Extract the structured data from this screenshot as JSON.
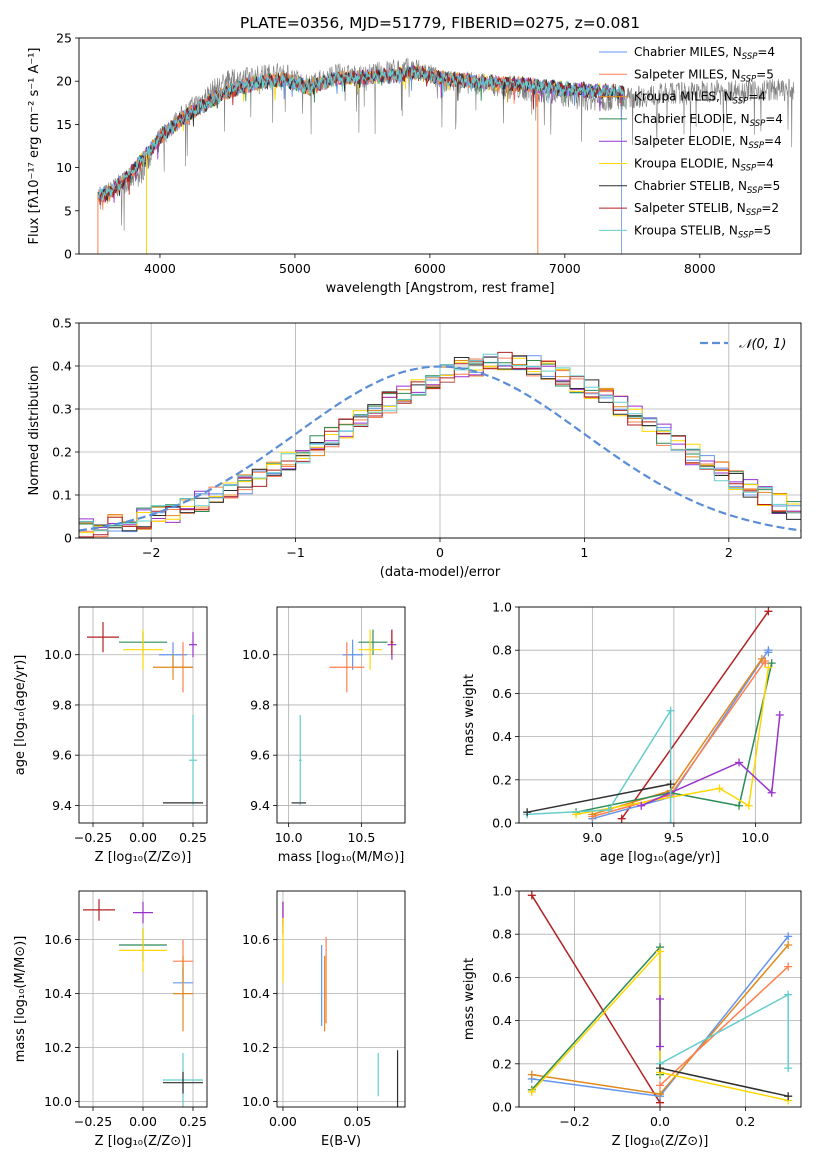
{
  "colors": {
    "Chabrier MILES": "#6495ed",
    "Salpeter MILES": "#ff7f50",
    "Kroupa MILES": "#e08a1e",
    "Chabrier ELODIE": "#2e8b57",
    "Salpeter ELODIE": "#9932cc",
    "Kroupa ELODIE": "#ffd700",
    "Chabrier STELIB": "#2f2f2f",
    "Salpeter STELIB": "#b22222",
    "Kroupa STELIB": "#66cdcd"
  },
  "chart_data": [
    {
      "id": "spectrum",
      "type": "line",
      "title": "PLATE=0356, MJD=51779, FIBERID=0275, z=0.081",
      "xlabel": "wavelength [Angstrom, rest frame]",
      "ylabel": "Flux [fλ10⁻¹⁷ erg cm⁻² s⁻¹ A⁻¹]",
      "xlim": [
        3400,
        8750
      ],
      "ylim": [
        0,
        25
      ],
      "xticks": [
        4000,
        5000,
        6000,
        7000,
        8000
      ],
      "yticks": [
        0,
        5,
        10,
        15,
        20,
        25
      ],
      "legend_position": "top-right",
      "legend": [
        {
          "name": "Chabrier MILES",
          "label": "Chabrier MILES, N",
          "sub": "SSP",
          "suffix": "=4",
          "color": "#6495ed"
        },
        {
          "name": "Salpeter MILES",
          "label": "Salpeter MILES, N",
          "sub": "SSP",
          "suffix": "=5",
          "color": "#ff7f50"
        },
        {
          "name": "Kroupa MILES",
          "label": "Kroupa MILES, N",
          "sub": "SSP",
          "suffix": "=4",
          "color": "#e08a1e"
        },
        {
          "name": "Chabrier ELODIE",
          "label": "Chabrier ELODIE, N",
          "sub": "SSP",
          "suffix": "=4",
          "color": "#2e8b57"
        },
        {
          "name": "Salpeter ELODIE",
          "label": "Salpeter ELODIE, N",
          "sub": "SSP",
          "suffix": "=4",
          "color": "#9932cc"
        },
        {
          "name": "Kroupa ELODIE",
          "label": "Kroupa ELODIE, N",
          "sub": "SSP",
          "suffix": "=4",
          "color": "#ffd700"
        },
        {
          "name": "Chabrier STELIB",
          "label": "Chabrier STELIB, N",
          "sub": "SSP",
          "suffix": "=5",
          "color": "#2f2f2f"
        },
        {
          "name": "Salpeter STELIB",
          "label": "Salpeter STELIB, N",
          "sub": "SSP",
          "suffix": "=2",
          "color": "#b22222"
        },
        {
          "name": "Kroupa STELIB",
          "label": "Kroupa STELIB, N",
          "sub": "SSP",
          "suffix": "=5",
          "color": "#66cdcd"
        }
      ],
      "data_series": {
        "name": "data",
        "color": "#808080",
        "x": [
          3560,
          3700,
          3850,
          4000,
          4200,
          4400,
          4500,
          4700,
          4900,
          5100,
          5300,
          5500,
          5700,
          5900,
          6100,
          6300,
          6500,
          6700,
          6900,
          7100,
          7300,
          7450,
          7700,
          8000,
          8300,
          8700
        ],
        "y": [
          6.5,
          8.0,
          9.0,
          13.5,
          16.5,
          19.0,
          20.0,
          20.5,
          21.0,
          19.5,
          20.8,
          20.5,
          21.3,
          21.5,
          20.0,
          19.8,
          19.5,
          19.0,
          18.5,
          18.0,
          17.8,
          18.0,
          18.5,
          18.8,
          19.0,
          19.0
        ]
      },
      "model_series": {
        "x": [
          3540,
          3620,
          3750,
          3900,
          4000,
          4150,
          4300,
          4500,
          4700,
          4900,
          5100,
          5300,
          5500,
          5700,
          5900,
          6100,
          6300,
          6500,
          6700,
          6900,
          7100,
          7300,
          7440
        ],
        "y": [
          6.8,
          7.0,
          8.8,
          11.5,
          13.5,
          15.5,
          17.0,
          18.8,
          19.8,
          20.2,
          19.3,
          20.3,
          20.5,
          20.6,
          21.0,
          20.3,
          20.0,
          19.8,
          19.6,
          19.3,
          19.0,
          18.8,
          18.7
        ]
      }
    },
    {
      "id": "residuals",
      "type": "line",
      "xlabel": "(data-model)/error",
      "ylabel": "Normed distribution",
      "xlim": [
        -2.5,
        2.5
      ],
      "ylim": [
        0,
        0.5
      ],
      "xticks": [
        -2,
        -1,
        0,
        1,
        2
      ],
      "yticks": [
        0.0,
        0.1,
        0.2,
        0.3,
        0.4,
        0.5
      ],
      "grid": true,
      "legend_position": "top-right",
      "gaussian": {
        "name": "𝒩(0, 1)",
        "mu": 0,
        "sigma": 1,
        "color": "#5b8ed6"
      },
      "histogram_bins": {
        "start": -2.5,
        "width": 0.1,
        "count": 50
      },
      "histogram_profile": [
        0.02,
        0.025,
        0.03,
        0.035,
        0.045,
        0.055,
        0.06,
        0.075,
        0.085,
        0.095,
        0.11,
        0.125,
        0.14,
        0.16,
        0.175,
        0.195,
        0.215,
        0.235,
        0.255,
        0.275,
        0.295,
        0.315,
        0.335,
        0.355,
        0.37,
        0.385,
        0.395,
        0.4,
        0.405,
        0.41,
        0.405,
        0.4,
        0.39,
        0.375,
        0.36,
        0.345,
        0.325,
        0.305,
        0.285,
        0.26,
        0.24,
        0.215,
        0.195,
        0.175,
        0.155,
        0.135,
        0.115,
        0.095,
        0.08,
        0.065
      ]
    },
    {
      "id": "age_vs_Z",
      "type": "scatter",
      "xlabel": "Z [log₁₀(Z/Z⊙)]",
      "ylabel": "age  [log₁₀(age/yr)]",
      "xlim": [
        -0.32,
        0.32
      ],
      "ylim": [
        9.33,
        10.19
      ],
      "xticks": [
        -0.25,
        0.0,
        0.25
      ],
      "xticklabels": [
        "−0.25",
        "0.00",
        "0.25"
      ],
      "yticks": [
        9.4,
        9.6,
        9.8,
        10.0
      ],
      "yticklabels": [
        "9.4",
        "9.6",
        "9.8",
        "10.0"
      ],
      "grid": true,
      "points": [
        {
          "series": "Salpeter STELIB",
          "x": -0.2,
          "xerr": 0.08,
          "y": 10.07,
          "yerr": 0.06
        },
        {
          "series": "Chabrier ELODIE",
          "x": 0.0,
          "xerr": 0.12,
          "y": 10.05,
          "yerr": 0.04
        },
        {
          "series": "Kroupa ELODIE",
          "x": 0.0,
          "xerr": 0.1,
          "y": 10.02,
          "yerr": 0.08
        },
        {
          "series": "Chabrier MILES",
          "x": 0.15,
          "xerr": 0.07,
          "y": 10.0,
          "yerr": 0.05
        },
        {
          "series": "Salpeter MILES",
          "x": 0.2,
          "xerr": 0.05,
          "y": 9.95,
          "yerr": 0.1
        },
        {
          "series": "Kroupa MILES",
          "x": 0.15,
          "xerr": 0.1,
          "y": 9.95,
          "yerr": 0.05
        },
        {
          "series": "Salpeter ELODIE",
          "x": 0.25,
          "xerr": 0.02,
          "y": 10.04,
          "yerr": 0.05
        },
        {
          "series": "Kroupa STELIB",
          "x": 0.25,
          "xerr": 0.02,
          "y": 9.58,
          "yerr": 0.18
        },
        {
          "series": "Chabrier STELIB",
          "x": 0.2,
          "xerr": 0.1,
          "y": 9.41,
          "yerr": 0.0
        }
      ]
    },
    {
      "id": "age_vs_mass",
      "type": "scatter",
      "xlabel": "mass [log₁₀(M/M⊙)]",
      "xlim": [
        9.92,
        10.8
      ],
      "ylim": [
        9.33,
        10.19
      ],
      "xticks": [
        10.0,
        10.5
      ],
      "xticklabels": [
        "10.0",
        "10.5"
      ],
      "yticks": [
        9.4,
        9.6,
        9.8,
        10.0
      ],
      "yticklabels": [
        "9.4",
        "9.6",
        "9.8",
        "10.0"
      ],
      "grid": true,
      "points": [
        {
          "series": "Chabrier ELODIE",
          "x": 10.58,
          "xerr": 0.1,
          "y": 10.05,
          "yerr": 0.05
        },
        {
          "series": "Kroupa ELODIE",
          "x": 10.56,
          "xerr": 0.08,
          "y": 10.02,
          "yerr": 0.08
        },
        {
          "series": "Chabrier MILES",
          "x": 10.44,
          "xerr": 0.07,
          "y": 10.0,
          "yerr": 0.06
        },
        {
          "series": "Salpeter MILES",
          "x": 10.4,
          "xerr": 0.12,
          "y": 9.95,
          "yerr": 0.1
        },
        {
          "series": "Salpeter ELODIE",
          "x": 10.71,
          "xerr": 0.03,
          "y": 10.04,
          "yerr": 0.06
        },
        {
          "series": "Salpeter STELIB",
          "x": 10.71,
          "xerr": 0.01,
          "y": 10.05,
          "yerr": 0.05
        },
        {
          "series": "Kroupa STELIB",
          "x": 10.08,
          "xerr": 0.01,
          "y": 9.58,
          "yerr": 0.18
        },
        {
          "series": "Chabrier STELIB",
          "x": 10.07,
          "xerr": 0.05,
          "y": 9.41,
          "yerr": 0.0
        }
      ]
    },
    {
      "id": "weight_vs_age",
      "type": "line",
      "xlabel": "age  [log₁₀(age/yr)]",
      "ylabel": "mass weight",
      "xlim": [
        8.55,
        10.28
      ],
      "ylim": [
        0,
        1
      ],
      "xticks": [
        9.0,
        9.5,
        10.0
      ],
      "xticklabels": [
        "9.0",
        "9.5",
        "10.0"
      ],
      "yticks": [
        0.0,
        0.2,
        0.4,
        0.6,
        0.8,
        1.0
      ],
      "yticklabels": [
        "0.0",
        "0.2",
        "0.4",
        "0.6",
        "0.8",
        "1.0"
      ],
      "grid": true,
      "series": [
        {
          "name": "Salpeter STELIB",
          "x": [
            9.18,
            10.08
          ],
          "y": [
            0.02,
            0.98
          ]
        },
        {
          "name": "Chabrier MILES",
          "x": [
            9.0,
            9.48,
            10.08,
            10.08
          ],
          "y": [
            0.02,
            0.12,
            0.8,
            0.79
          ]
        },
        {
          "name": "Salpeter MILES",
          "x": [
            9.0,
            9.48,
            10.06,
            10.06
          ],
          "y": [
            0.03,
            0.13,
            0.75,
            0.74
          ]
        },
        {
          "name": "Kroupa MILES",
          "x": [
            9.0,
            9.48,
            10.04
          ],
          "y": [
            0.04,
            0.15,
            0.76
          ]
        },
        {
          "name": "Chabrier ELODIE",
          "x": [
            8.9,
            9.48,
            9.9,
            10.1
          ],
          "y": [
            0.05,
            0.14,
            0.08,
            0.74
          ]
        },
        {
          "name": "Kroupa ELODIE",
          "x": [
            8.9,
            9.78,
            9.96,
            10.08
          ],
          "y": [
            0.04,
            0.16,
            0.08,
            0.72
          ]
        },
        {
          "name": "Salpeter ELODIE",
          "x": [
            9.3,
            9.9,
            10.1,
            10.15
          ],
          "y": [
            0.08,
            0.28,
            0.14,
            0.5
          ]
        },
        {
          "name": "Kroupa STELIB",
          "x": [
            8.6,
            9.1,
            9.48,
            9.48
          ],
          "y": [
            0.04,
            0.06,
            0.52,
            0.0
          ]
        },
        {
          "name": "Chabrier STELIB",
          "x": [
            8.6,
            9.48
          ],
          "y": [
            0.05,
            0.18
          ]
        }
      ]
    },
    {
      "id": "mass_vs_Z",
      "type": "scatter",
      "xlabel": "Z [log₁₀(Z/Z⊙)]",
      "ylabel": "mass [log₁₀(M/M⊙)]",
      "xlim": [
        -0.32,
        0.32
      ],
      "ylim": [
        9.98,
        10.78
      ],
      "xticks": [
        -0.25,
        0.0,
        0.25
      ],
      "xticklabels": [
        "−0.25",
        "0.00",
        "0.25"
      ],
      "yticks": [
        10.0,
        10.2,
        10.4,
        10.6
      ],
      "yticklabels": [
        "10.0",
        "10.2",
        "10.4",
        "10.6"
      ],
      "grid": true,
      "points": [
        {
          "series": "Salpeter STELIB",
          "x": -0.22,
          "xerr": 0.08,
          "y": 10.71,
          "yerr": 0.04
        },
        {
          "series": "Salpeter ELODIE",
          "x": 0.0,
          "xerr": 0.05,
          "y": 10.7,
          "yerr": 0.04
        },
        {
          "series": "Chabrier ELODIE",
          "x": 0.0,
          "xerr": 0.12,
          "y": 10.58,
          "yerr": 0.06
        },
        {
          "series": "Kroupa ELODIE",
          "x": 0.0,
          "xerr": 0.12,
          "y": 10.56,
          "yerr": 0.08
        },
        {
          "series": "Salpeter MILES",
          "x": 0.2,
          "xerr": 0.05,
          "y": 10.52,
          "yerr": 0.08
        },
        {
          "series": "Chabrier MILES",
          "x": 0.2,
          "xerr": 0.05,
          "y": 10.44,
          "yerr": 0.06
        },
        {
          "series": "Kroupa MILES",
          "x": 0.2,
          "xerr": 0.05,
          "y": 10.4,
          "yerr": 0.14
        },
        {
          "series": "Kroupa STELIB",
          "x": 0.2,
          "xerr": 0.1,
          "y": 10.08,
          "yerr": 0.1
        },
        {
          "series": "Chabrier STELIB",
          "x": 0.2,
          "xerr": 0.1,
          "y": 10.07,
          "yerr": 0.04
        }
      ]
    },
    {
      "id": "mass_vs_ebv",
      "type": "scatter",
      "xlabel": "E(B-V)",
      "xlim": [
        -0.004,
        0.082
      ],
      "ylim": [
        9.98,
        10.78
      ],
      "xticks": [
        0.0,
        0.05
      ],
      "xticklabels": [
        "0.00",
        "0.05"
      ],
      "yticks": [
        10.0,
        10.2,
        10.4,
        10.6
      ],
      "yticklabels": [
        "10.0",
        "10.2",
        "10.4",
        "10.6"
      ],
      "grid": true,
      "points": [
        {
          "series": "Salpeter STELIB",
          "x": 0.0,
          "xerr": 0.0,
          "y": 10.68,
          "yerr": 0.06
        },
        {
          "series": "Salpeter ELODIE",
          "x": 0.0,
          "xerr": 0.0,
          "y": 10.7,
          "yerr": 0.04
        },
        {
          "series": "Kroupa ELODIE",
          "x": 0.0,
          "xerr": 0.0,
          "y": 10.56,
          "yerr": 0.12
        },
        {
          "series": "Chabrier MILES",
          "x": 0.026,
          "xerr": 0.0,
          "y": 10.43,
          "yerr": 0.15
        },
        {
          "series": "Salpeter MILES",
          "x": 0.029,
          "xerr": 0.0,
          "y": 10.45,
          "yerr": 0.16
        },
        {
          "series": "Kroupa MILES",
          "x": 0.028,
          "xerr": 0.0,
          "y": 10.4,
          "yerr": 0.14
        },
        {
          "series": "Kroupa STELIB",
          "x": 0.064,
          "xerr": 0.0,
          "y": 10.1,
          "yerr": 0.08
        },
        {
          "series": "Chabrier STELIB",
          "x": 0.077,
          "xerr": 0.0,
          "y": 10.07,
          "yerr": 0.12
        }
      ]
    },
    {
      "id": "weight_vs_Z",
      "type": "line",
      "xlabel": "Z [log₁₀(Z/Z⊙)]",
      "ylabel": "mass weight",
      "xlim": [
        -0.33,
        0.33
      ],
      "ylim": [
        0,
        1
      ],
      "xticks": [
        -0.2,
        0.0,
        0.2
      ],
      "xticklabels": [
        "−0.2",
        "0.0",
        "0.2"
      ],
      "yticks": [
        0.0,
        0.2,
        0.4,
        0.6,
        0.8,
        1.0
      ],
      "yticklabels": [
        "0.0",
        "0.2",
        "0.4",
        "0.6",
        "0.8",
        "1.0"
      ],
      "grid": true,
      "series": [
        {
          "name": "Salpeter STELIB",
          "x": [
            -0.3,
            0.0
          ],
          "y": [
            0.98,
            0.02
          ]
        },
        {
          "name": "Chabrier MILES",
          "x": [
            -0.3,
            0.0,
            0.3
          ],
          "y": [
            0.13,
            0.05,
            0.79
          ]
        },
        {
          "name": "Kroupa MILES",
          "x": [
            -0.3,
            0.0,
            0.3
          ],
          "y": [
            0.15,
            0.06,
            0.75
          ]
        },
        {
          "name": "Salpeter MILES",
          "x": [
            0.0,
            0.3
          ],
          "y": [
            0.1,
            0.65
          ]
        },
        {
          "name": "Chabrier ELODIE",
          "x": [
            -0.3,
            0.0,
            0.0
          ],
          "y": [
            0.08,
            0.74,
            0.15
          ]
        },
        {
          "name": "Kroupa ELODIE",
          "x": [
            -0.3,
            0.0,
            0.0,
            0.3
          ],
          "y": [
            0.07,
            0.72,
            0.16,
            0.03
          ]
        },
        {
          "name": "Salpeter ELODIE",
          "x": [
            0.0,
            0.0
          ],
          "y": [
            0.5,
            0.28
          ]
        },
        {
          "name": "Kroupa STELIB",
          "x": [
            0.0,
            0.3,
            0.3
          ],
          "y": [
            0.2,
            0.52,
            0.18
          ]
        },
        {
          "name": "Chabrier STELIB",
          "x": [
            0.0,
            0.3
          ],
          "y": [
            0.18,
            0.05
          ]
        }
      ]
    }
  ]
}
